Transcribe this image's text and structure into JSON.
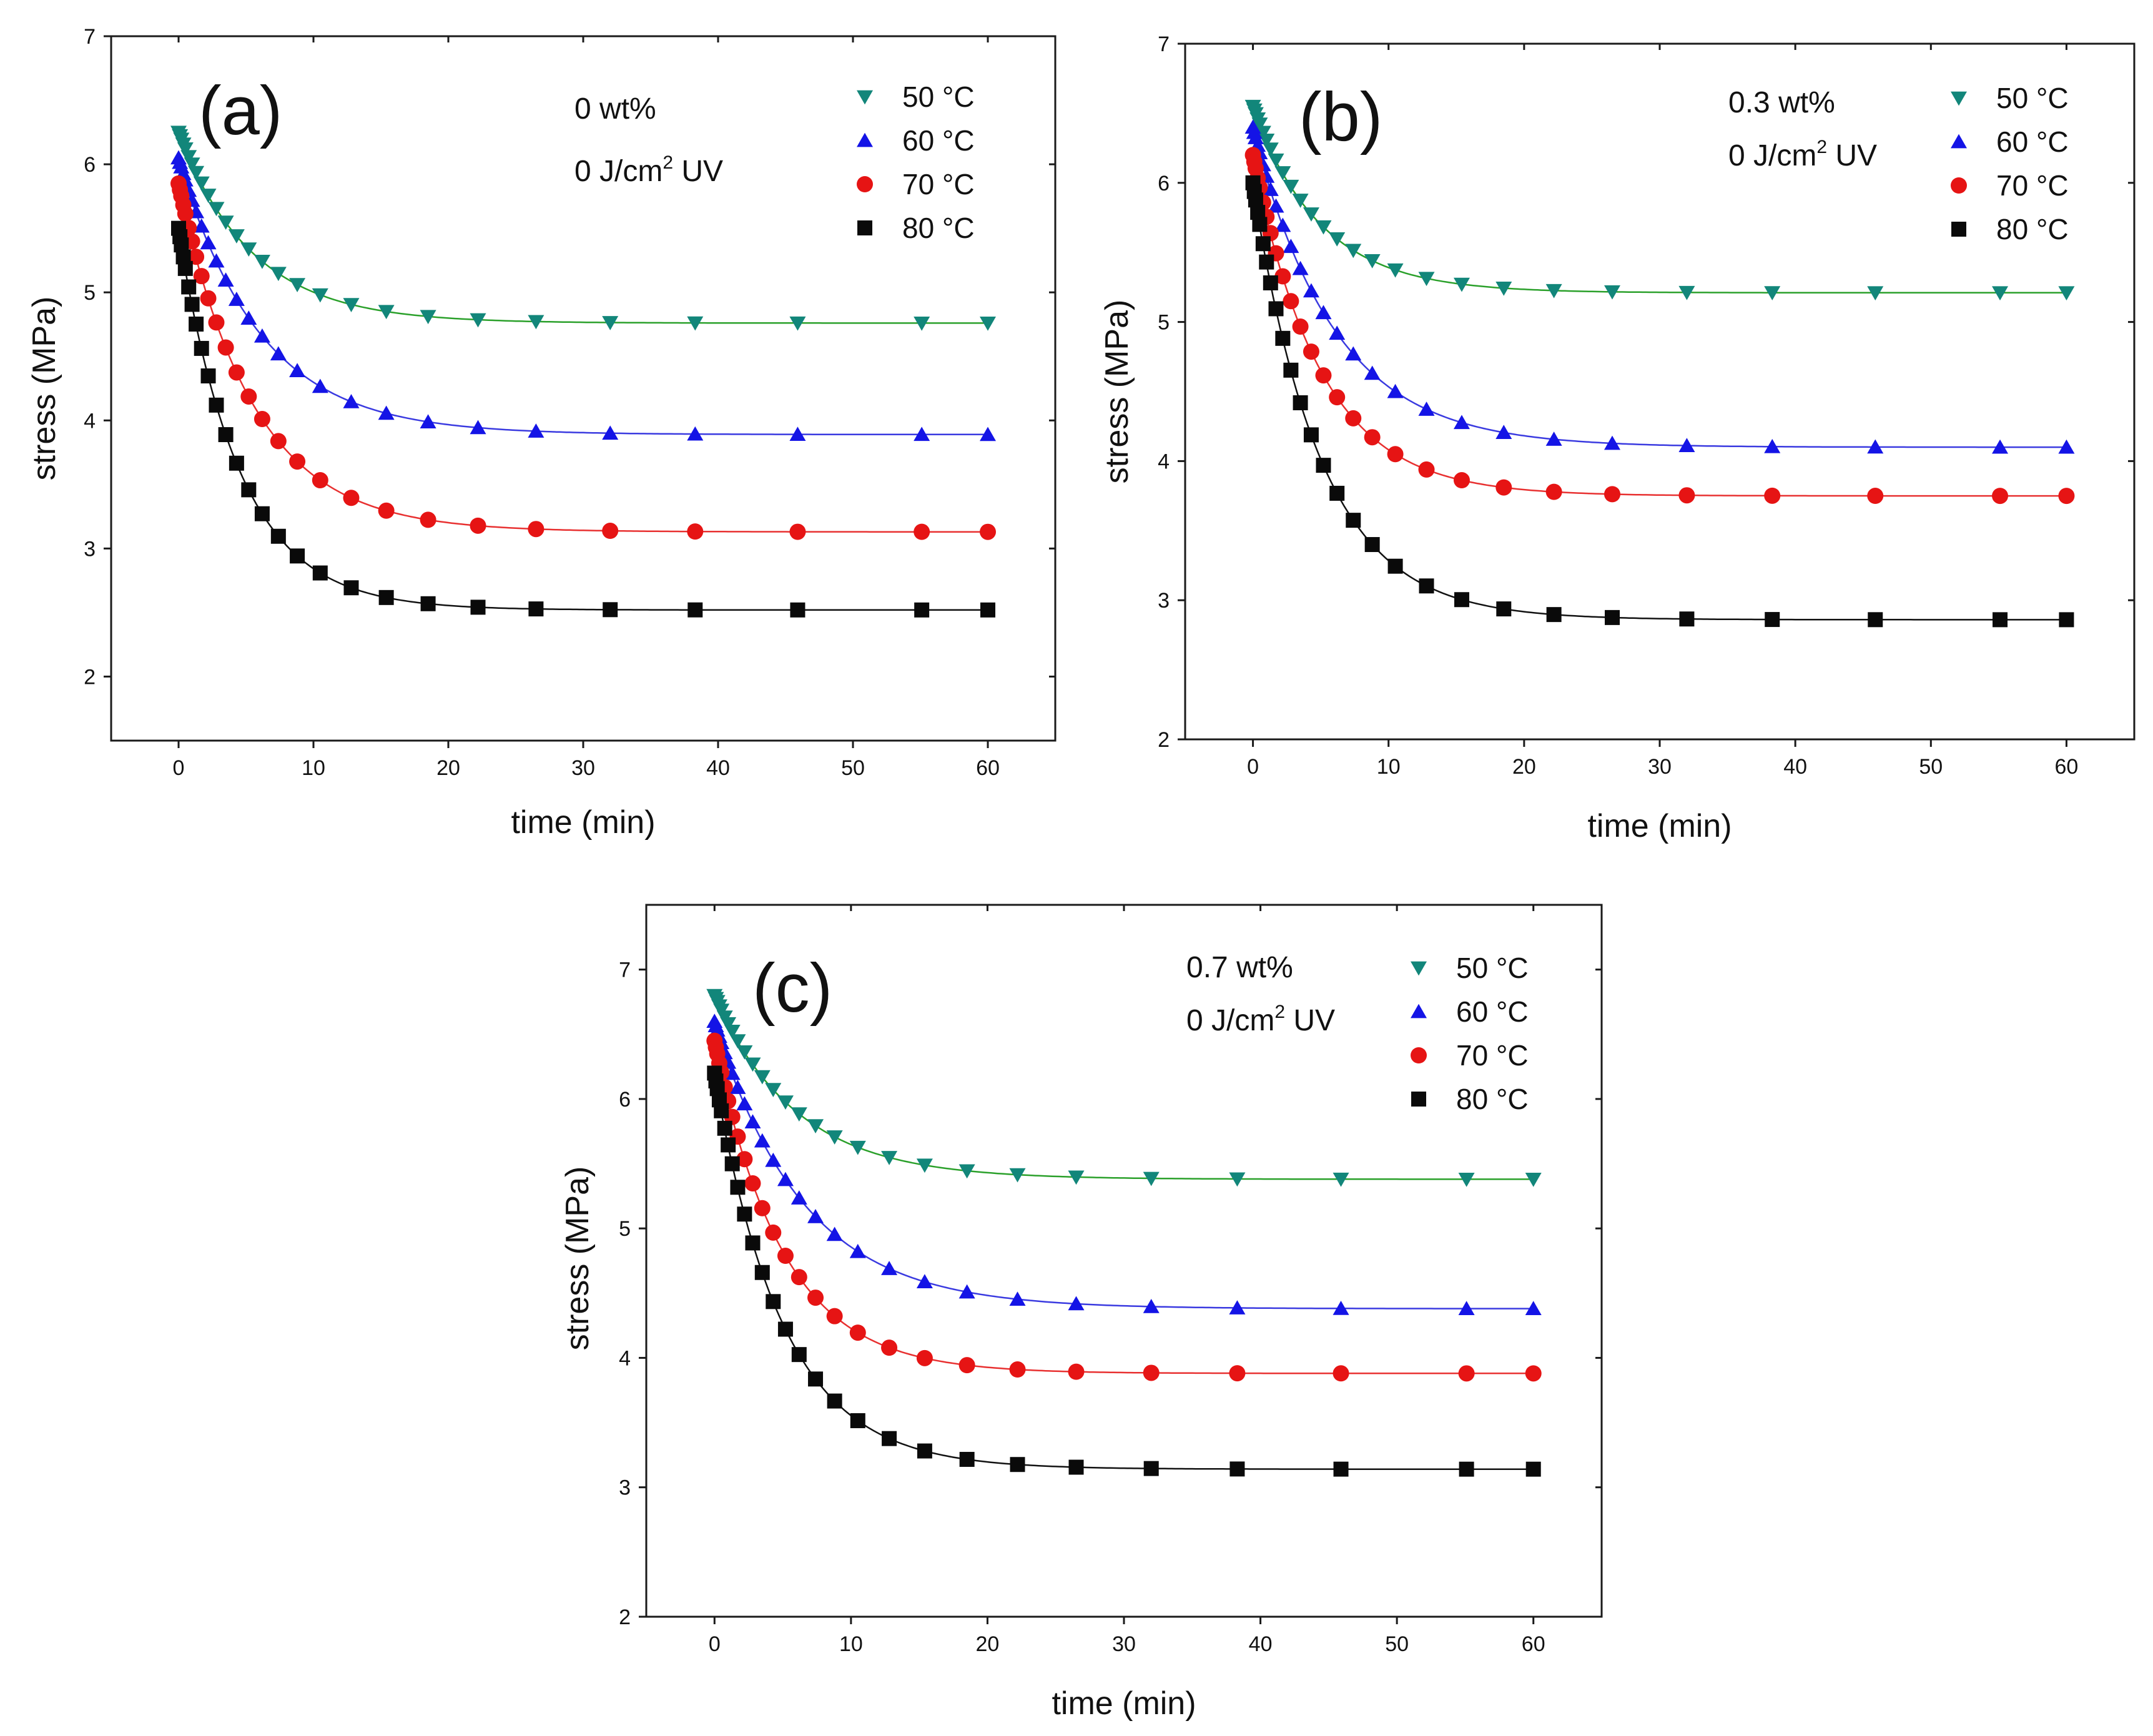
{
  "colors": {
    "50C": "#12867a",
    "60C": "#1414e6",
    "70C": "#e61414",
    "80C": "#0a0a0a",
    "fit_50C": "#2aa02a",
    "fit_60C": "#3a3ae0",
    "fit_70C": "#e83030",
    "fit_80C": "#111111"
  },
  "chart_data": [
    {
      "type": "scatter",
      "panel_label": "(a)",
      "annotation": [
        "0 wt%",
        "0 J/cm",
        "2",
        " UV"
      ],
      "xlabel": "time (min)",
      "ylabel": "stress (MPa)",
      "xlim": [
        -5,
        65
      ],
      "ylim": [
        1.5,
        7
      ],
      "xticks": [
        0,
        10,
        20,
        30,
        40,
        50,
        60
      ],
      "yticks": [
        2,
        3,
        4,
        5,
        6,
        7
      ],
      "legend_position": "top-right",
      "series": [
        {
          "name": "50 °C",
          "key": "50C",
          "marker": "triangle-down",
          "initial": 6.25,
          "plateau": 4.76,
          "tau": 5.5
        },
        {
          "name": "60 °C",
          "key": "60C",
          "marker": "triangle-up",
          "initial": 6.05,
          "plateau": 3.89,
          "tau": 6.0
        },
        {
          "name": "70 °C",
          "key": "70C",
          "marker": "circle",
          "initial": 5.85,
          "plateau": 3.13,
          "tau": 5.5
        },
        {
          "name": "80 °C",
          "key": "80C",
          "marker": "square",
          "initial": 5.5,
          "plateau": 2.52,
          "tau": 4.5
        }
      ]
    },
    {
      "type": "scatter",
      "panel_label": "(b)",
      "annotation": [
        "0.3 wt%",
        "0 J/cm",
        "2",
        " UV"
      ],
      "xlabel": "time (min)",
      "ylabel": "stress (MPa)",
      "xlim": [
        -5,
        65
      ],
      "ylim": [
        2,
        7
      ],
      "xticks": [
        0,
        10,
        20,
        30,
        40,
        50,
        60
      ],
      "yticks": [
        2,
        3,
        4,
        5,
        6,
        7
      ],
      "legend_position": "top-right",
      "series": [
        {
          "name": "50 °C",
          "key": "50C",
          "marker": "triangle-down",
          "initial": 6.55,
          "plateau": 5.21,
          "tau": 5.0
        },
        {
          "name": "60 °C",
          "key": "60C",
          "marker": "triangle-up",
          "initial": 6.4,
          "plateau": 4.1,
          "tau": 6.0
        },
        {
          "name": "70 °C",
          "key": "70C",
          "marker": "circle",
          "initial": 6.2,
          "plateau": 3.75,
          "tau": 5.0
        },
        {
          "name": "80 °C",
          "key": "80C",
          "marker": "square",
          "initial": 6.0,
          "plateau": 2.86,
          "tau": 5.0
        }
      ]
    },
    {
      "type": "scatter",
      "panel_label": "(c)",
      "annotation": [
        "0.7 wt%",
        "0 J/cm",
        "2",
        " UV"
      ],
      "xlabel": "time (min)",
      "ylabel": "stress (MPa)",
      "xlim": [
        -5,
        65
      ],
      "ylim": [
        2,
        7.5
      ],
      "xticks": [
        0,
        10,
        20,
        30,
        40,
        50,
        60
      ],
      "yticks": [
        2,
        3,
        4,
        5,
        6,
        7
      ],
      "legend_position": "top-right",
      "series": [
        {
          "name": "50 °C",
          "key": "50C",
          "marker": "triangle-down",
          "initial": 6.8,
          "plateau": 5.38,
          "tau": 6.0
        },
        {
          "name": "60 °C",
          "key": "60C",
          "marker": "triangle-up",
          "initial": 6.6,
          "plateau": 4.38,
          "tau": 6.5
        },
        {
          "name": "70 °C",
          "key": "70C",
          "marker": "circle",
          "initial": 6.45,
          "plateau": 3.88,
          "tau": 5.0
        },
        {
          "name": "80 °C",
          "key": "80C",
          "marker": "square",
          "initial": 6.2,
          "plateau": 3.14,
          "tau": 5.0
        }
      ]
    }
  ]
}
